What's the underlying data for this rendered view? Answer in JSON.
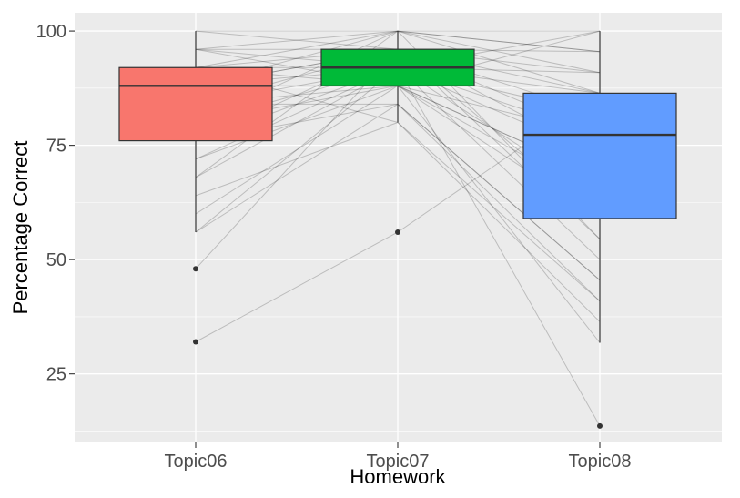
{
  "chart_data": {
    "type": "boxplot",
    "title": "",
    "xlabel": "Homework",
    "ylabel": "Percentage Correct",
    "categories": [
      "Topic06",
      "Topic07",
      "Topic08"
    ],
    "ylim": [
      10,
      104
    ],
    "yticks": [
      25,
      50,
      75,
      100
    ],
    "grid": true,
    "legend": "none",
    "colors": {
      "panel_background": "#ebebeb",
      "grid_line": "#ffffff",
      "Topic06": "#f8766d",
      "Topic07": "#00ba38",
      "Topic08": "#619cff",
      "box_outline": "#333333",
      "outlier_point": "#333333",
      "connecting_line": "#000000"
    },
    "boxes": [
      {
        "category": "Topic06",
        "q1": 76,
        "median": 88,
        "q3": 92,
        "whisker_low": 56,
        "whisker_high": 100,
        "outliers": [
          48,
          32
        ]
      },
      {
        "category": "Topic07",
        "q1": 88,
        "median": 92,
        "q3": 96,
        "whisker_low": 80,
        "whisker_high": 100,
        "outliers": [
          56
        ]
      },
      {
        "category": "Topic08",
        "q1": 59,
        "median": 77.3,
        "q3": 86.4,
        "whisker_low": 31.8,
        "whisker_high": 100,
        "outliers": [
          13.6
        ]
      }
    ],
    "paired_students": [
      [
        100,
        100,
        100
      ],
      [
        100,
        96,
        95.5
      ],
      [
        96,
        100,
        90.9
      ],
      [
        96,
        96,
        86.4
      ],
      [
        96,
        92,
        100
      ],
      [
        92,
        100,
        95.5
      ],
      [
        92,
        96,
        77.3
      ],
      [
        92,
        92,
        90.9
      ],
      [
        92,
        88,
        68.2
      ],
      [
        88,
        100,
        86.4
      ],
      [
        88,
        96,
        81.8
      ],
      [
        88,
        92,
        72.7
      ],
      [
        88,
        88,
        63.6
      ],
      [
        88,
        96,
        54.5
      ],
      [
        84,
        92,
        86.4
      ],
      [
        84,
        88,
        77.3
      ],
      [
        84,
        96,
        59.1
      ],
      [
        84,
        84,
        45.5
      ],
      [
        80,
        92,
        81.8
      ],
      [
        80,
        88,
        68.2
      ],
      [
        80,
        100,
        95.5
      ],
      [
        76,
        96,
        90.9
      ],
      [
        76,
        92,
        63.6
      ],
      [
        76,
        84,
        40.9
      ],
      [
        72,
        92,
        50
      ],
      [
        72,
        88,
        59.1
      ],
      [
        68,
        100,
        54.5
      ],
      [
        68,
        92,
        77.3
      ],
      [
        64,
        80,
        36.4
      ],
      [
        60,
        88,
        31.8
      ],
      [
        56,
        84,
        45.5
      ],
      [
        56,
        92,
        13.6
      ],
      [
        48,
        96,
        72.7
      ],
      [
        32,
        56,
        86.4
      ],
      [
        92,
        80,
        40.9
      ],
      [
        96,
        88,
        100
      ]
    ]
  }
}
